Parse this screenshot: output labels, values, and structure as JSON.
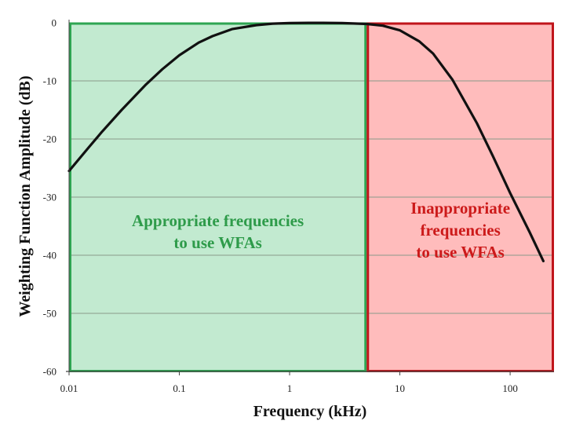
{
  "chart_data": {
    "type": "line",
    "xlabel": "Frequency (kHz)",
    "ylabel": "Weighting Function Amplitude (dB)",
    "x_scale": "log",
    "xlim": [
      0.01,
      250
    ],
    "ylim": [
      -60,
      0
    ],
    "x_ticks": [
      0.01,
      0.1,
      1,
      10,
      100
    ],
    "x_tick_labels": [
      "0.01",
      "0.1",
      "1",
      "10",
      "100"
    ],
    "y_ticks": [
      0,
      -10,
      -20,
      -30,
      -40,
      -50,
      -60
    ],
    "y_tick_labels": [
      "0",
      "-10",
      "-20",
      "-30",
      "-40",
      "-50",
      "-60"
    ],
    "grid": true,
    "series": [
      {
        "color": "#111111",
        "x": [
          0.01,
          0.015,
          0.02,
          0.03,
          0.05,
          0.07,
          0.1,
          0.15,
          0.2,
          0.3,
          0.5,
          0.7,
          1,
          1.5,
          2,
          3,
          5,
          7,
          10,
          15,
          20,
          30,
          50,
          70,
          100,
          150,
          200
        ],
        "y": [
          -25.5,
          -21.5,
          -18.7,
          -15,
          -10.6,
          -8,
          -5.6,
          -3.4,
          -2.3,
          -1.1,
          -0.4,
          -0.15,
          -0.05,
          -0.02,
          -0.02,
          -0.05,
          -0.2,
          -0.5,
          -1.3,
          -3.2,
          -5.3,
          -9.8,
          -17.3,
          -23,
          -29.3,
          -36,
          -41
        ]
      }
    ],
    "regions": [
      {
        "label": "Appropriate frequencies\nto use WFAs",
        "x_range": [
          0.01,
          5
        ],
        "fill": "#c2ead0",
        "stroke": "#2ea552",
        "text_color": "#2e9b4a"
      },
      {
        "label": "Inappropriate\nfrequencies\nto use WFAs",
        "x_range": [
          5,
          250
        ],
        "fill": "#ffbcbc",
        "stroke": "#c0151b",
        "text_color": "#cc1a1a"
      }
    ]
  }
}
